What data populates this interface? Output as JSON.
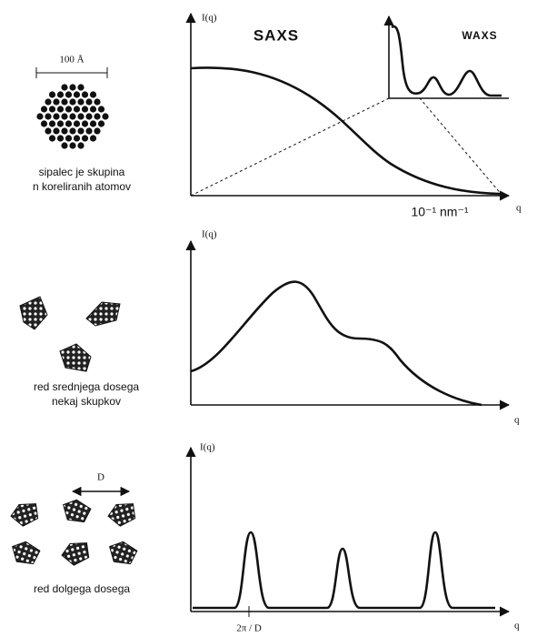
{
  "panels": [
    {
      "y_label": "I(q)",
      "saxs_label": "SAXS",
      "waxs_label": "WAXS",
      "x_unit": "10⁻¹ nm⁻¹",
      "x_label": "q",
      "scale_label": "100 Å",
      "caption": [
        "sipalec je skupina",
        "n koreliranih atomov"
      ]
    },
    {
      "y_label": "I(q)",
      "x_label": "q",
      "caption": [
        "red srednjega dosega",
        "nekaj skupkov"
      ]
    },
    {
      "y_label": "I(q)",
      "x_label": "q",
      "spacing_label": "D",
      "peak_label": "2π / D",
      "caption": [
        "red dolgega dosega"
      ]
    }
  ]
}
